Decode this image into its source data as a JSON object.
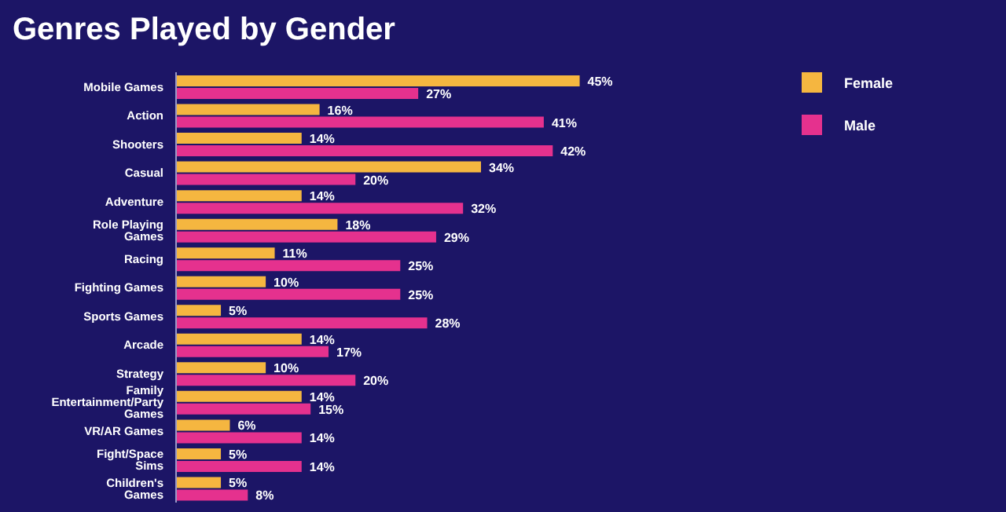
{
  "chart_data": {
    "type": "bar",
    "orientation": "horizontal",
    "title": "Genres Played by Gender",
    "categories": [
      "Mobile Games",
      "Action",
      "Shooters",
      "Casual",
      "Adventure",
      "Role Playing Games",
      "Racing",
      "Fighting Games",
      "Sports Games",
      "Arcade",
      "Strategy",
      "Family Entertainment/Party Games",
      "VR/AR Games",
      "Fight/Space Sims",
      "Children's Games"
    ],
    "series": [
      {
        "name": "Female",
        "color": "#f5b640",
        "values": [
          45,
          16,
          14,
          34,
          14,
          18,
          11,
          10,
          5,
          14,
          10,
          14,
          6,
          5,
          5
        ],
        "value_labels": [
          "45%",
          "16%",
          "14%",
          "34%",
          "14%",
          "18%",
          "11%",
          "10%",
          "5%",
          "14%",
          "10%",
          "14%",
          "6%",
          "5%",
          "5%"
        ]
      },
      {
        "name": "Male",
        "color": "#e5318e",
        "values": [
          27,
          41,
          42,
          20,
          32,
          29,
          25,
          25,
          28,
          17,
          20,
          15,
          14,
          14,
          8
        ],
        "value_labels": [
          "27%",
          "41%",
          "42%",
          "20%",
          "32%",
          "29%",
          "25%",
          "25%",
          "28%",
          "17%",
          "20%",
          "15%",
          "14%",
          "14%",
          "8%"
        ]
      }
    ],
    "grid": false,
    "legend": "top right"
  }
}
